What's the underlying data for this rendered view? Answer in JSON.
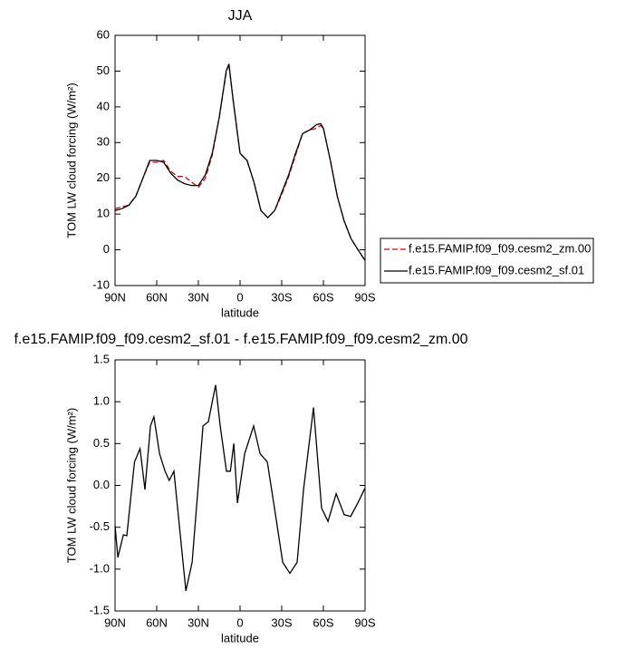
{
  "chart_data": [
    {
      "type": "line",
      "title": "JJA",
      "xlabel": "latitude",
      "ylabel": "TOM LW cloud forcing (W/m²)",
      "x": [
        90,
        85,
        80,
        75,
        70,
        65,
        60,
        55,
        50,
        45,
        40,
        35,
        30,
        25,
        20,
        15,
        10,
        8,
        5,
        0,
        -5,
        -10,
        -15,
        -20,
        -25,
        -30,
        -35,
        -40,
        -45,
        -50,
        -55,
        -58,
        -60,
        -65,
        -70,
        -75,
        -80,
        -85,
        -90
      ],
      "series": [
        {
          "name": "f.e15.FAMIP.f09_f09.cesm2_zm.00",
          "color": "#e00000",
          "dash": true,
          "values": [
            11.5,
            12,
            12.5,
            15,
            20,
            24.5,
            24.5,
            25,
            22,
            20.5,
            20.5,
            19,
            17.5,
            20,
            26.5,
            37,
            49.5,
            52,
            42,
            27,
            25,
            19,
            11,
            9,
            11,
            15.5,
            20.5,
            26.5,
            32.5,
            33.5,
            34,
            34.8,
            34,
            25,
            15,
            8,
            3,
            0,
            -3
          ]
        },
        {
          "name": "f.e15.FAMIP.f09_f09.cesm2_sf.01",
          "color": "#000000",
          "dash": false,
          "values": [
            11,
            11.5,
            12.5,
            15,
            20,
            25,
            25,
            24.5,
            21.5,
            19.5,
            18.5,
            18,
            18,
            21,
            27,
            37,
            50,
            52,
            42,
            27,
            25,
            19,
            11,
            9,
            11,
            16,
            21,
            27,
            32.5,
            33.5,
            35,
            35.3,
            34,
            25,
            15,
            8,
            3,
            0,
            -3
          ]
        }
      ],
      "xlim": [
        90,
        -90
      ],
      "xticks": [
        {
          "value": 90,
          "label": "90N"
        },
        {
          "value": 60,
          "label": "60N"
        },
        {
          "value": 30,
          "label": "30N"
        },
        0,
        {
          "value": -30,
          "label": "30S"
        },
        {
          "value": -60,
          "label": "60S"
        },
        {
          "value": -90,
          "label": "90S"
        }
      ],
      "ylim": [
        -10,
        60
      ],
      "yticks": [
        -10,
        0,
        10,
        20,
        30,
        40,
        50,
        60
      ],
      "legend": "right"
    },
    {
      "type": "line",
      "title": "f.e15.FAMIP.f09_f09.cesm2_sf.01 - f.e15.FAMIP.f09_f09.cesm2_zm.00",
      "xlabel": "latitude",
      "ylabel": "TOM LW cloud forcing (W/m²)",
      "x": [
        90,
        88,
        84,
        81.5,
        76,
        72,
        68.5,
        64.5,
        62,
        58,
        54,
        51,
        47.6,
        43.7,
        39,
        34.5,
        29.3,
        26.7,
        22.8,
        17.6,
        14.3,
        9.8,
        7,
        4.5,
        1.9,
        -3.3,
        -9.8,
        -14.4,
        -19.6,
        -24.8,
        -30.7,
        -35.9,
        -41.1,
        -45.7,
        -52.9,
        -58.7,
        -63.3,
        -69.2,
        -75,
        -79.6,
        -84.8,
        -90
      ],
      "values": [
        -0.48,
        -0.86,
        -0.59,
        -0.6,
        0.28,
        0.44,
        -0.05,
        0.71,
        0.82,
        0.38,
        0.17,
        0.06,
        0.17,
        -0.48,
        -1.26,
        -0.92,
        0.17,
        0.71,
        0.76,
        1.2,
        0.71,
        0.17,
        0.17,
        0.5,
        -0.21,
        0.38,
        0.71,
        0.38,
        0.28,
        -0.27,
        -0.92,
        -1.05,
        -0.92,
        -0.05,
        0.93,
        -0.27,
        -0.43,
        -0.1,
        -0.35,
        -0.37,
        -0.21,
        -0.03
      ],
      "color": "#000000",
      "xlim": [
        90,
        -90
      ],
      "xticks": [
        {
          "value": 90,
          "label": "90N"
        },
        {
          "value": 60,
          "label": "60N"
        },
        {
          "value": 30,
          "label": "30N"
        },
        0,
        {
          "value": -30,
          "label": "30S"
        },
        {
          "value": -60,
          "label": "60S"
        },
        {
          "value": -90,
          "label": "90S"
        }
      ],
      "ylim": [
        -1.5,
        1.5
      ],
      "yticks": [
        -1.5,
        {
          "value": -1,
          "label": "-1.0"
        },
        -0.5,
        {
          "value": 0,
          "label": "0.0"
        },
        0.5,
        {
          "value": 1,
          "label": "1.0"
        },
        1.5
      ]
    }
  ]
}
